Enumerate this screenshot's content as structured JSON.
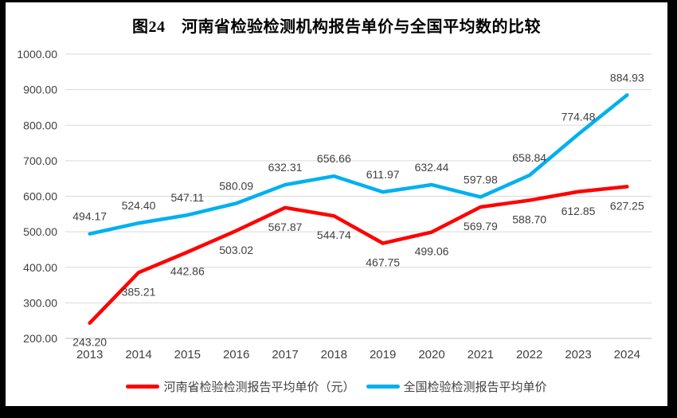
{
  "title": "图24　河南省检验检测机构报告单价与全国平均数的比较",
  "chart_data": {
    "type": "line",
    "title": "图24　河南省检验检测机构报告单价与全国平均数的比较",
    "categories": [
      "2013",
      "2014",
      "2015",
      "2016",
      "2017",
      "2018",
      "2019",
      "2020",
      "2021",
      "2022",
      "2023",
      "2024"
    ],
    "series": [
      {
        "name": "河南省检验检测报告平均单价（元）",
        "color": "#FF0000",
        "label_position": "below",
        "values": [
          243.2,
          385.21,
          442.86,
          503.02,
          567.87,
          544.74,
          467.75,
          499.06,
          569.79,
          588.7,
          612.85,
          627.25
        ]
      },
      {
        "name": "全国检验检测报告平均单价",
        "color": "#00B0F0",
        "label_position": "above",
        "values": [
          494.17,
          524.4,
          547.11,
          580.09,
          632.31,
          656.66,
          611.97,
          632.44,
          597.98,
          658.84,
          774.48,
          884.93
        ]
      }
    ],
    "ylim": [
      200,
      1000
    ],
    "ytick_step": 100,
    "ytick_labels": [
      "200.00",
      "300.00",
      "400.00",
      "500.00",
      "600.00",
      "700.00",
      "800.00",
      "900.00",
      "1000.00"
    ],
    "value_decimals": 2,
    "grid": true,
    "legend_position": "bottom",
    "styles": {
      "frame_color": "#000000",
      "background": "#FFFFFF",
      "grid_color": "#D9D9D9",
      "axis_color": "#BFBFBF",
      "label_color": "#404040",
      "title_color": "#000000"
    }
  }
}
